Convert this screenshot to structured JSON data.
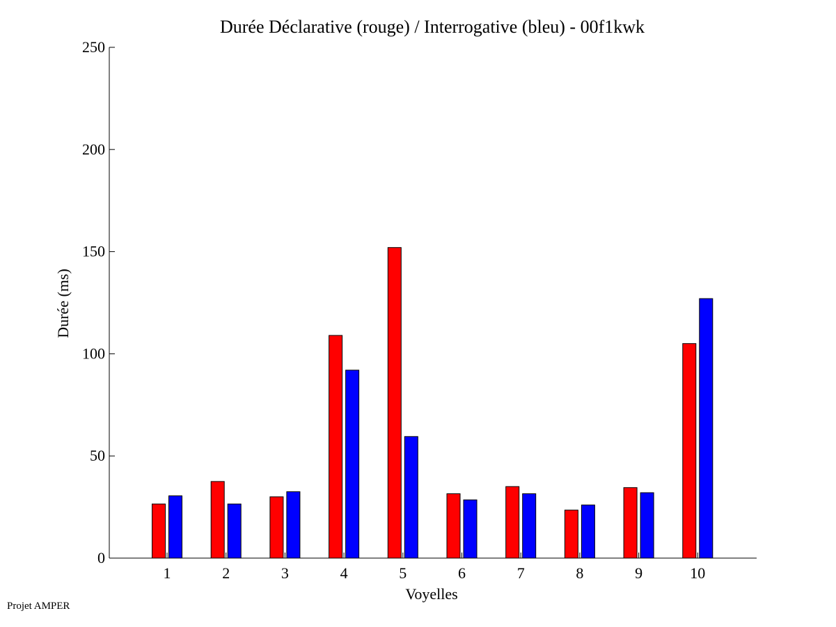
{
  "footer": {
    "text": "Projet AMPER"
  },
  "chart_data": {
    "type": "bar",
    "title": "Durée Déclarative (rouge) / Interrogative (bleu) - 00f1kwk",
    "xlabel": "Voyelles",
    "ylabel": "Durée (ms)",
    "ylim": [
      0,
      250
    ],
    "yticks": [
      0,
      50,
      100,
      150,
      200,
      250
    ],
    "categories": [
      "1",
      "2",
      "3",
      "4",
      "5",
      "6",
      "7",
      "8",
      "9",
      "10"
    ],
    "grid": false,
    "legend": "none",
    "series": [
      {
        "color": "#ff0000",
        "values": [
          26.5,
          37.5,
          30,
          109,
          152,
          31.5,
          35,
          23.5,
          34.5,
          105
        ]
      },
      {
        "color": "#0000ff",
        "values": [
          30.5,
          26.5,
          32.5,
          92,
          59.5,
          28.5,
          31.5,
          26,
          32,
          127
        ]
      }
    ]
  }
}
